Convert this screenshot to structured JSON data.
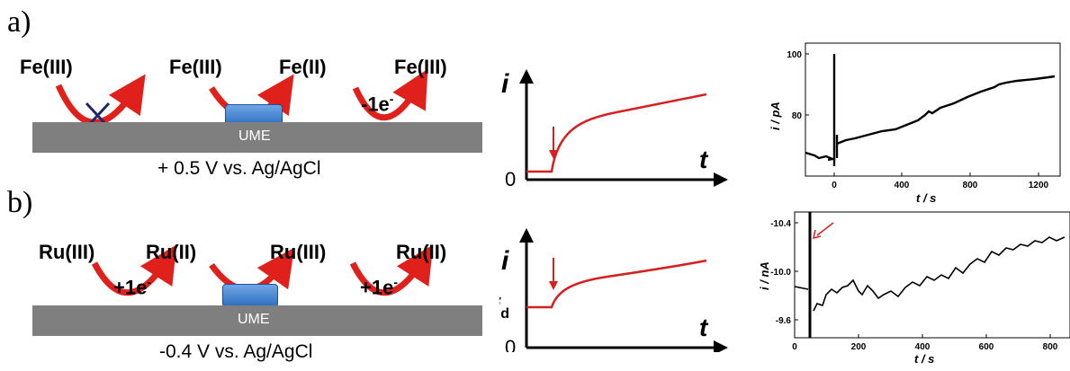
{
  "panel_a": {
    "label": "a)",
    "species": [
      "Fe(III)",
      "Fe(III)",
      "Fe(II)",
      "Fe(III)"
    ],
    "electron_transfer": "-1e",
    "electron_sup": "-",
    "ume": "UME",
    "potential": "+ 0.5 V vs. Ag/AgCl",
    "sketch": {
      "y_label": "i",
      "x_label": "t",
      "zero_label": "0"
    },
    "plot": {
      "ylabel": "i / pA",
      "xlabel": "t / s",
      "yticks": [
        "100",
        "80"
      ],
      "xticks": [
        "0",
        "400",
        "800",
        "1200"
      ]
    }
  },
  "panel_b": {
    "label": "b)",
    "species": [
      "Ru(III)",
      "Ru(II)",
      "Ru(III)",
      "Ru(II)"
    ],
    "electron_transfer_1": "+1e",
    "electron_transfer_2": "+1e",
    "electron_sup": "-",
    "ume": "UME",
    "potential": "-0.4 V vs. Ag/AgCl",
    "sketch": {
      "y_label": "i",
      "x_label": "t",
      "zero_label": "0",
      "id_label": "i",
      "id_sub": "d"
    },
    "plot": {
      "ylabel": "i / nA",
      "xlabel": "t / s",
      "yticks": [
        "-10.4",
        "-10.0",
        "-9.6"
      ],
      "xticks": [
        "0",
        "200",
        "400",
        "600",
        "800"
      ]
    }
  },
  "colors": {
    "arrow": "#e0201b",
    "curve": "#d81e1e",
    "ume": "#7f7f7f",
    "electrode": "#3b7dd8",
    "cross": "#1a2a6c"
  }
}
